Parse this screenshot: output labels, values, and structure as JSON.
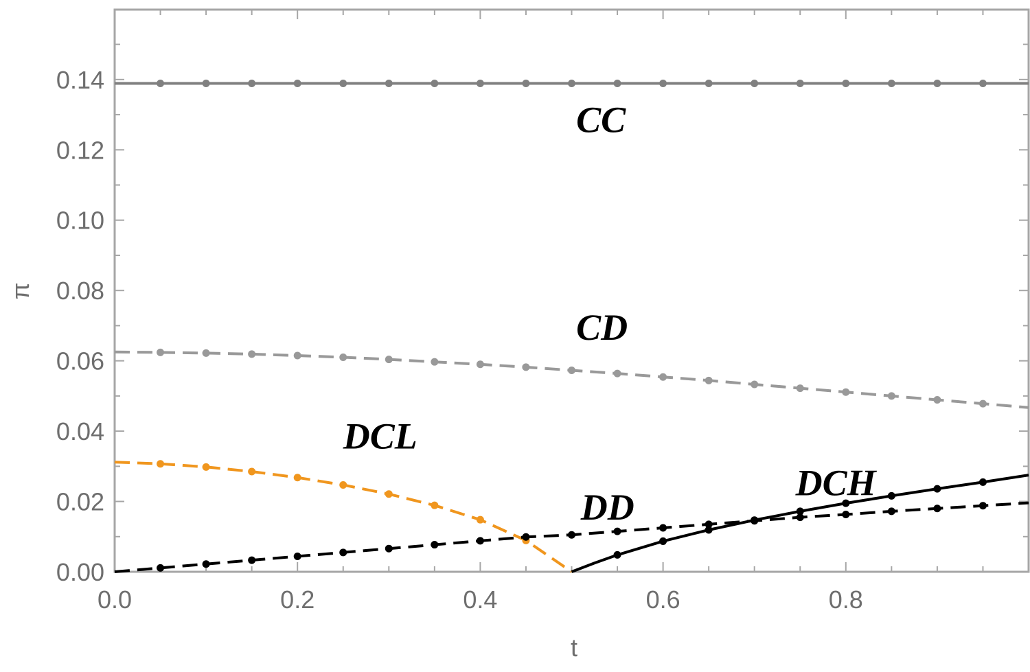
{
  "chart_data": {
    "type": "line",
    "title": "",
    "xlabel": "t",
    "ylabel": "π",
    "xlim": [
      0,
      1
    ],
    "ylim": [
      0,
      0.155
    ],
    "x_ticks": [
      "0.0",
      "0.2",
      "0.4",
      "0.6",
      "0.8"
    ],
    "y_ticks": [
      "0.00",
      "0.02",
      "0.04",
      "0.06",
      "0.08",
      "0.10",
      "0.12",
      "0.14"
    ],
    "grid": false,
    "series": [
      {
        "name": "CC",
        "style": "solid",
        "color": "#808080",
        "x": [
          0,
          0.05,
          0.1,
          0.15,
          0.2,
          0.25,
          0.3,
          0.35,
          0.4,
          0.45,
          0.5,
          0.55,
          0.6,
          0.65,
          0.7,
          0.75,
          0.8,
          0.85,
          0.9,
          0.95,
          1.0
        ],
        "y": [
          0.1389,
          0.1389,
          0.1389,
          0.1389,
          0.1389,
          0.1389,
          0.1389,
          0.1389,
          0.1389,
          0.1389,
          0.1389,
          0.1389,
          0.1389,
          0.1389,
          0.1389,
          0.1389,
          0.1389,
          0.1389,
          0.1389,
          0.1389,
          0.1389
        ],
        "markers": [
          0.05,
          0.1,
          0.15,
          0.2,
          0.25,
          0.3,
          0.35,
          0.4,
          0.45,
          0.5,
          0.55,
          0.6,
          0.65,
          0.7,
          0.75,
          0.8,
          0.85,
          0.9,
          0.95
        ],
        "label_at": [
          0.505,
          0.125
        ]
      },
      {
        "name": "CD",
        "style": "dashed",
        "color": "#999999",
        "x": [
          0,
          0.05,
          0.1,
          0.15,
          0.2,
          0.25,
          0.3,
          0.35,
          0.4,
          0.45,
          0.5,
          0.55,
          0.6,
          0.65,
          0.7,
          0.75,
          0.8,
          0.85,
          0.9,
          0.95,
          1.0
        ],
        "y": [
          0.0625,
          0.0624,
          0.0622,
          0.0619,
          0.0615,
          0.061,
          0.0604,
          0.0597,
          0.059,
          0.0582,
          0.0573,
          0.0564,
          0.0554,
          0.0544,
          0.0533,
          0.0522,
          0.0511,
          0.05,
          0.0489,
          0.0478,
          0.0467
        ],
        "markers": [
          0.05,
          0.1,
          0.15,
          0.2,
          0.25,
          0.3,
          0.35,
          0.4,
          0.45,
          0.5,
          0.55,
          0.6,
          0.65,
          0.7,
          0.75,
          0.8,
          0.85,
          0.9,
          0.95
        ],
        "label_at": [
          0.505,
          0.066
        ]
      },
      {
        "name": "DCL",
        "style": "dashed",
        "color": "#f0961e",
        "x": [
          0,
          0.05,
          0.1,
          0.15,
          0.2,
          0.25,
          0.3,
          0.35,
          0.4,
          0.45,
          0.5
        ],
        "y": [
          0.0312,
          0.0307,
          0.0298,
          0.0285,
          0.0268,
          0.0247,
          0.0221,
          0.0189,
          0.0148,
          0.0089,
          0.0
        ],
        "markers": [
          0.05,
          0.1,
          0.15,
          0.2,
          0.25,
          0.3,
          0.35,
          0.4,
          0.45
        ],
        "label_at": [
          0.25,
          0.035
        ]
      },
      {
        "name": "DD",
        "style": "dashed",
        "color": "#000000",
        "x": [
          0,
          0.05,
          0.1,
          0.15,
          0.2,
          0.25,
          0.3,
          0.35,
          0.4,
          0.45,
          0.5,
          0.55,
          0.6,
          0.65,
          0.7,
          0.75,
          0.8,
          0.85,
          0.9,
          0.95,
          1.0
        ],
        "y": [
          0.0,
          0.0011,
          0.0022,
          0.0033,
          0.0044,
          0.0055,
          0.0066,
          0.0077,
          0.0088,
          0.0099,
          0.0105,
          0.0115,
          0.0125,
          0.0135,
          0.0145,
          0.0155,
          0.0163,
          0.0172,
          0.018,
          0.0188,
          0.0196
        ],
        "markers": [
          0.05,
          0.1,
          0.15,
          0.2,
          0.25,
          0.3,
          0.35,
          0.4,
          0.45,
          0.5,
          0.55,
          0.6,
          0.65,
          0.7,
          0.75,
          0.8,
          0.85,
          0.9,
          0.95
        ],
        "label_at": [
          0.51,
          0.0148
        ]
      },
      {
        "name": "DCH",
        "style": "solid",
        "color": "#000000",
        "x": [
          0.5,
          0.525,
          0.55,
          0.6,
          0.65,
          0.7,
          0.75,
          0.8,
          0.85,
          0.9,
          0.95,
          1.0
        ],
        "y": [
          0.0,
          0.0025,
          0.0048,
          0.0087,
          0.0119,
          0.0147,
          0.0172,
          0.0195,
          0.0216,
          0.0236,
          0.0255,
          0.0275
        ],
        "markers": [
          0.55,
          0.6,
          0.65,
          0.7,
          0.75,
          0.8,
          0.85,
          0.9,
          0.95
        ],
        "label_at": [
          0.745,
          0.0218
        ]
      }
    ]
  }
}
